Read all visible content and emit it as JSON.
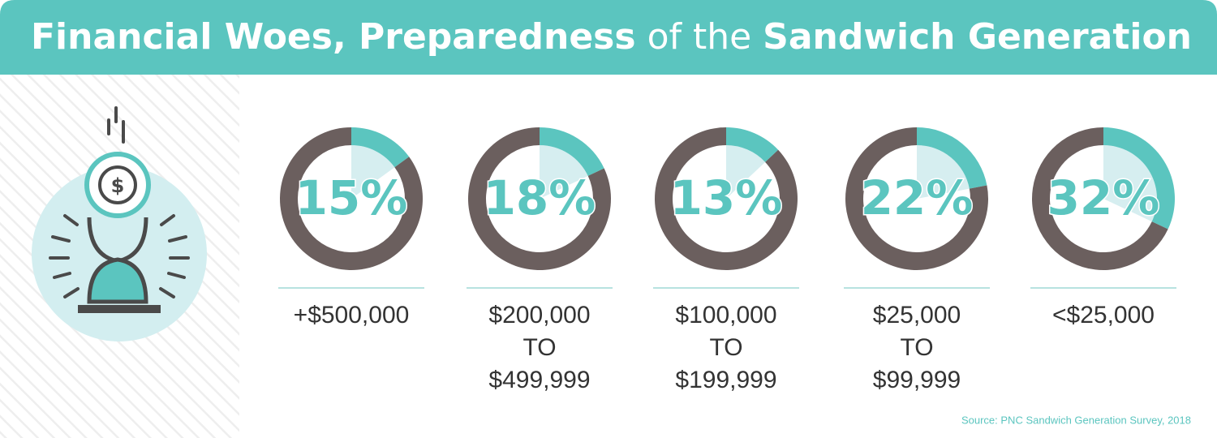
{
  "title_parts": [
    "Financial Woes, Preparedness",
    "of the",
    "Sandwich Generation"
  ],
  "source": "Source: PNC Sandwich Generation Survey, 2018",
  "chart_data": [
    {
      "type": "donut",
      "values": [
        15,
        85
      ],
      "value_labels": [
        "15%",
        null
      ],
      "colors": [
        "#5bc5bf",
        "#6b5f5e"
      ],
      "label_lines": [
        "+$500,000"
      ]
    },
    {
      "type": "donut",
      "values": [
        18,
        82
      ],
      "value_labels": [
        "18%",
        null
      ],
      "colors": [
        "#5bc5bf",
        "#6b5f5e"
      ],
      "label_lines": [
        "$200,000",
        "TO",
        "$499,999"
      ]
    },
    {
      "type": "donut",
      "values": [
        13,
        87
      ],
      "value_labels": [
        "13%",
        null
      ],
      "colors": [
        "#5bc5bf",
        "#6b5f5e"
      ],
      "label_lines": [
        "$100,000",
        "TO",
        "$199,999"
      ]
    },
    {
      "type": "donut",
      "values": [
        22,
        78
      ],
      "value_labels": [
        "22%",
        null
      ],
      "colors": [
        "#5bc5bf",
        "#6b5f5e"
      ],
      "label_lines": [
        "$25,000",
        "TO",
        "$99,999"
      ]
    },
    {
      "type": "donut",
      "values": [
        32,
        68
      ],
      "value_labels": [
        "32%",
        null
      ],
      "colors": [
        "#5bc5bf",
        "#6b5f5e"
      ],
      "label_lines": [
        "<$25,000"
      ]
    }
  ]
}
